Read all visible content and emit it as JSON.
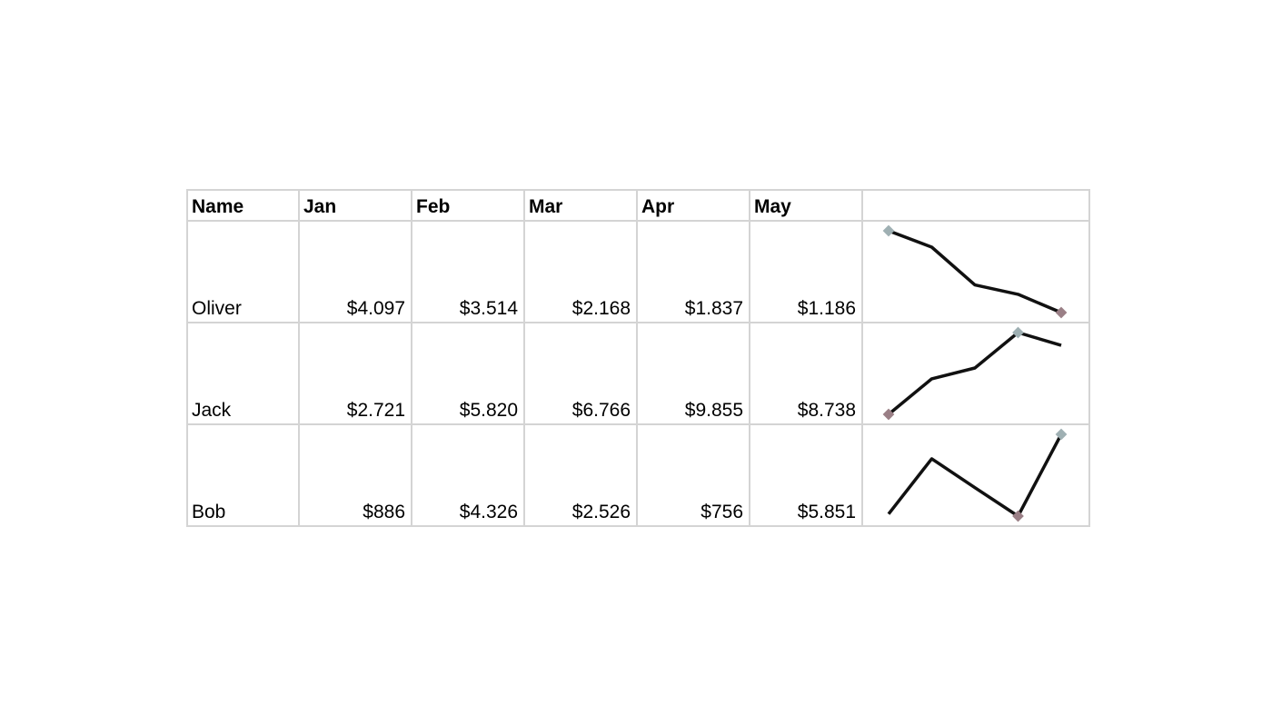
{
  "table": {
    "headers": [
      "Name",
      "Jan",
      "Feb",
      "Mar",
      "Apr",
      "May",
      ""
    ],
    "rows": [
      {
        "name": "Oliver",
        "values": [
          "$4.097",
          "$3.514",
          "$2.168",
          "$1.837",
          "$1.186"
        ]
      },
      {
        "name": "Jack",
        "values": [
          "$2.721",
          "$5.820",
          "$6.766",
          "$9.855",
          "$8.738"
        ]
      },
      {
        "name": "Bob",
        "values": [
          "$886",
          "$4.326",
          "$2.526",
          "$756",
          "$5.851"
        ]
      }
    ]
  },
  "chart_data": {
    "type": "line",
    "categories": [
      "Jan",
      "Feb",
      "Mar",
      "Apr",
      "May"
    ],
    "series": [
      {
        "values": [
          4097,
          3514,
          2168,
          1837,
          1186
        ]
      },
      {
        "values": [
          2721,
          5820,
          6766,
          9855,
          8738
        ]
      },
      {
        "values": [
          886,
          4326,
          2526,
          756,
          5851
        ]
      }
    ],
    "line_color": "#111111",
    "high_marker_color": "#9fb0b3",
    "low_marker_color": "#9a7f86",
    "grid": false
  }
}
